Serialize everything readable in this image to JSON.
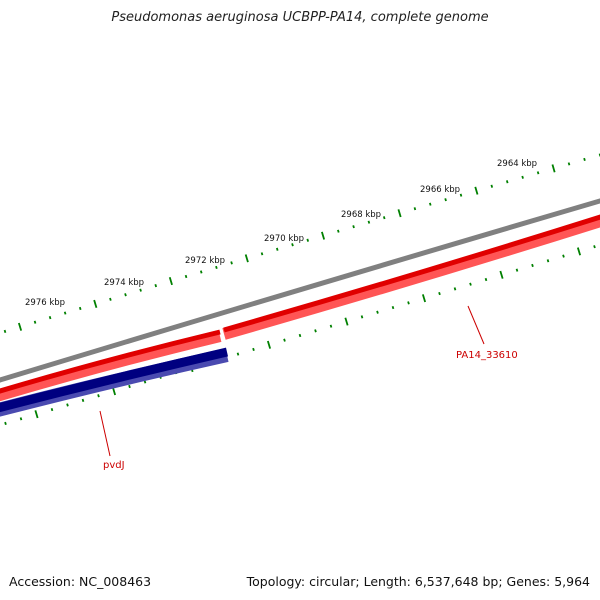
{
  "title": "Pseudomonas aeruginosa UCBPP-PA14, complete genome",
  "accession": "Accession: NC_008463",
  "summary": "Topology: circular; Length: 6,537,648 bp; Genes: 5,964",
  "ruler_labels": [
    "2976 kbp",
    "2974 kbp",
    "2972 kbp",
    "2970 kbp",
    "2968 kbp",
    "2966 kbp",
    "2964 kbp"
  ],
  "genes": [
    {
      "label": "PA14_33610",
      "strand": "forward",
      "color": "#ff0000"
    },
    {
      "label": "pvdJ",
      "strand": "reverse",
      "color": "#000080"
    }
  ],
  "colors": {
    "backbone": "#808080",
    "forward_gene": "#ff0000",
    "reverse_gene": "#000080",
    "ticks": "#008000",
    "gene_label": "#cc0000"
  }
}
